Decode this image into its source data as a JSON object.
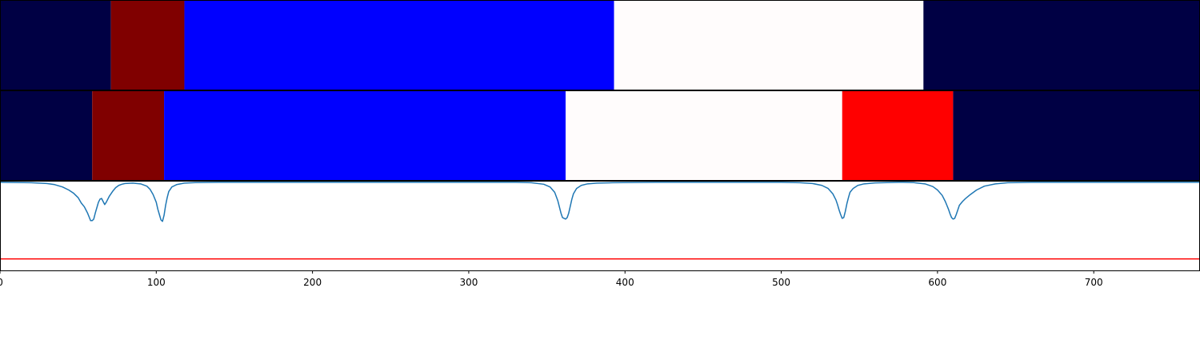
{
  "chart_data": [
    {
      "type": "segment_bar",
      "xlim": [
        0,
        768
      ],
      "segments": [
        {
          "start": 0,
          "end": 71,
          "color": "#000044"
        },
        {
          "start": 71,
          "end": 118,
          "color": "#800000"
        },
        {
          "start": 118,
          "end": 393,
          "color": "#0000ff"
        },
        {
          "start": 393,
          "end": 591,
          "color": "#fffcfc"
        },
        {
          "start": 591,
          "end": 768,
          "color": "#000044"
        }
      ]
    },
    {
      "type": "segment_bar",
      "xlim": [
        0,
        768
      ],
      "segments": [
        {
          "start": 0,
          "end": 59,
          "color": "#000044"
        },
        {
          "start": 59,
          "end": 105,
          "color": "#800000"
        },
        {
          "start": 105,
          "end": 362,
          "color": "#0000ff"
        },
        {
          "start": 362,
          "end": 539,
          "color": "#fffcfc"
        },
        {
          "start": 539,
          "end": 610,
          "color": "#ff0000"
        },
        {
          "start": 610,
          "end": 768,
          "color": "#000044"
        }
      ]
    },
    {
      "type": "line",
      "xlim": [
        0,
        768
      ],
      "ylim": [
        -1.15,
        0.02
      ],
      "xticks": [
        0,
        100,
        200,
        300,
        400,
        500,
        600,
        700
      ],
      "xtick_labels": [
        "0",
        "100",
        "200",
        "300",
        "400",
        "500",
        "600",
        "700"
      ],
      "threshold": {
        "value": -1.0,
        "color": "#ff0000"
      },
      "series": [
        {
          "color": "#1f77b4",
          "x": [
            0,
            20,
            30,
            35,
            40,
            44,
            47,
            50,
            52,
            54,
            55,
            56,
            57,
            58,
            59,
            60,
            61,
            62,
            63,
            64,
            65,
            66,
            67,
            68,
            70,
            72,
            74,
            76,
            78,
            80,
            85,
            90,
            94,
            96,
            98,
            100,
            101,
            102,
            103,
            104,
            105,
            106,
            107,
            108,
            110,
            113,
            118,
            125,
            140,
            330,
            340,
            348,
            352,
            355,
            357,
            358,
            359,
            360,
            361,
            362,
            363,
            364,
            365,
            366,
            367,
            369,
            372,
            376,
            382,
            392,
            420,
            500,
            512,
            520,
            526,
            530,
            533,
            535,
            536,
            537,
            538,
            539,
            540,
            541,
            542,
            543,
            544,
            546,
            549,
            553,
            560,
            575,
            578,
            585,
            592,
            597,
            600,
            603,
            605,
            606,
            607,
            608,
            609,
            610,
            611,
            612,
            613,
            614,
            616,
            618,
            621,
            625,
            630,
            637,
            645,
            660,
            768
          ],
          "y": [
            0,
            -0.005,
            -0.015,
            -0.03,
            -0.06,
            -0.1,
            -0.14,
            -0.2,
            -0.27,
            -0.32,
            -0.36,
            -0.4,
            -0.45,
            -0.5,
            -0.5,
            -0.48,
            -0.4,
            -0.33,
            -0.26,
            -0.22,
            -0.21,
            -0.25,
            -0.29,
            -0.26,
            -0.18,
            -0.12,
            -0.07,
            -0.04,
            -0.025,
            -0.015,
            -0.01,
            -0.02,
            -0.05,
            -0.09,
            -0.16,
            -0.26,
            -0.35,
            -0.42,
            -0.49,
            -0.51,
            -0.43,
            -0.3,
            -0.2,
            -0.12,
            -0.06,
            -0.03,
            -0.01,
            -0.003,
            0,
            0,
            -0.005,
            -0.025,
            -0.06,
            -0.13,
            -0.24,
            -0.32,
            -0.4,
            -0.46,
            -0.47,
            -0.48,
            -0.46,
            -0.4,
            -0.31,
            -0.22,
            -0.15,
            -0.08,
            -0.04,
            -0.02,
            -0.01,
            -0.005,
            0,
            0,
            -0.005,
            -0.015,
            -0.04,
            -0.08,
            -0.15,
            -0.23,
            -0.29,
            -0.36,
            -0.42,
            -0.47,
            -0.46,
            -0.38,
            -0.28,
            -0.2,
            -0.13,
            -0.08,
            -0.04,
            -0.02,
            -0.008,
            0,
            0,
            -0.004,
            -0.02,
            -0.055,
            -0.1,
            -0.17,
            -0.25,
            -0.3,
            -0.35,
            -0.41,
            -0.46,
            -0.48,
            -0.47,
            -0.42,
            -0.36,
            -0.3,
            -0.25,
            -0.21,
            -0.16,
            -0.1,
            -0.05,
            -0.02,
            -0.005,
            0,
            0
          ]
        }
      ]
    }
  ]
}
